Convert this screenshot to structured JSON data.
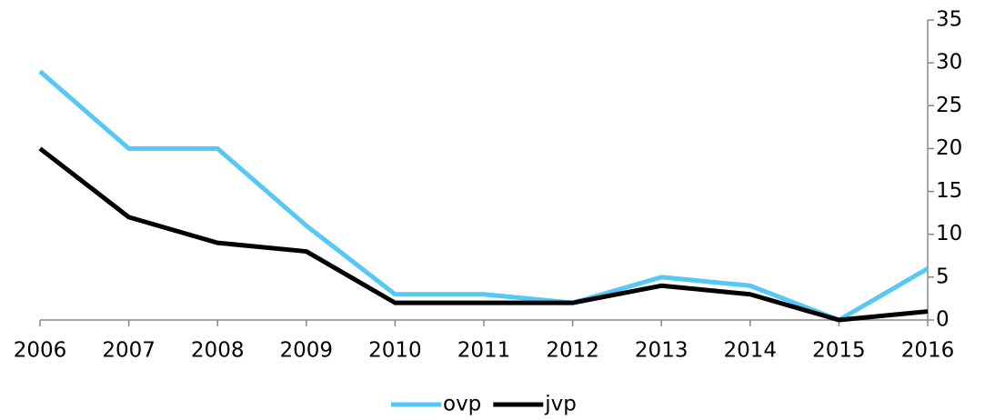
{
  "chart_data": {
    "type": "line",
    "categories": [
      "2006",
      "2007",
      "2008",
      "2009",
      "2010",
      "2011",
      "2012",
      "2013",
      "2014",
      "2015",
      "2016"
    ],
    "series": [
      {
        "name": "ovp",
        "color": "#55c8f5",
        "values": [
          29,
          20,
          20,
          11,
          3,
          3,
          2,
          5,
          4,
          0,
          6
        ]
      },
      {
        "name": "jvp",
        "color": "#000000",
        "values": [
          20,
          12,
          9,
          8,
          2,
          2,
          2,
          4,
          3,
          0,
          1
        ]
      }
    ],
    "ylim": [
      0,
      35
    ],
    "yticks": [
      0,
      5,
      10,
      15,
      20,
      25,
      30,
      35
    ],
    "legend": "bottom"
  }
}
